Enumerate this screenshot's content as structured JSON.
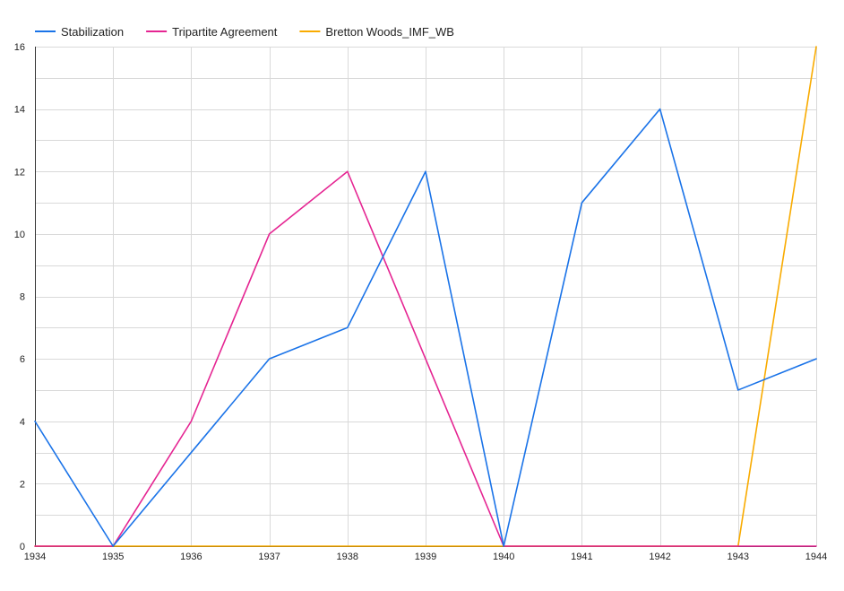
{
  "chart_data": {
    "type": "line",
    "x": [
      1934,
      1935,
      1936,
      1937,
      1938,
      1939,
      1940,
      1941,
      1942,
      1943,
      1944
    ],
    "x_tick_labels": [
      "1934",
      "1935",
      "1936",
      "1937",
      "1938",
      "1939",
      "1940",
      "1941",
      "1942",
      "1943",
      "1944"
    ],
    "y_tick_labels": [
      "0",
      "2",
      "4",
      "6",
      "8",
      "10",
      "12",
      "14",
      "16"
    ],
    "y_ticks": [
      0,
      2,
      4,
      6,
      8,
      10,
      12,
      14,
      16
    ],
    "ylim": [
      0,
      16
    ],
    "xlim": [
      1934,
      1944
    ],
    "grid": true,
    "legend_position": "top-left",
    "series": [
      {
        "name": "Stabilization",
        "color": "#1a73e8",
        "values": [
          4,
          0,
          3,
          6,
          7,
          12,
          0,
          11,
          14,
          5,
          6
        ]
      },
      {
        "name": "Tripartite Agreement",
        "color": "#e52592",
        "values": [
          0,
          0,
          4,
          10,
          12,
          6,
          0,
          0,
          0,
          0,
          0
        ]
      },
      {
        "name": "Bretton Woods_IMF_WB",
        "color": "#f9ab00",
        "values": [
          0,
          0,
          0,
          0,
          0,
          0,
          0,
          0,
          0,
          0,
          16
        ]
      }
    ]
  }
}
